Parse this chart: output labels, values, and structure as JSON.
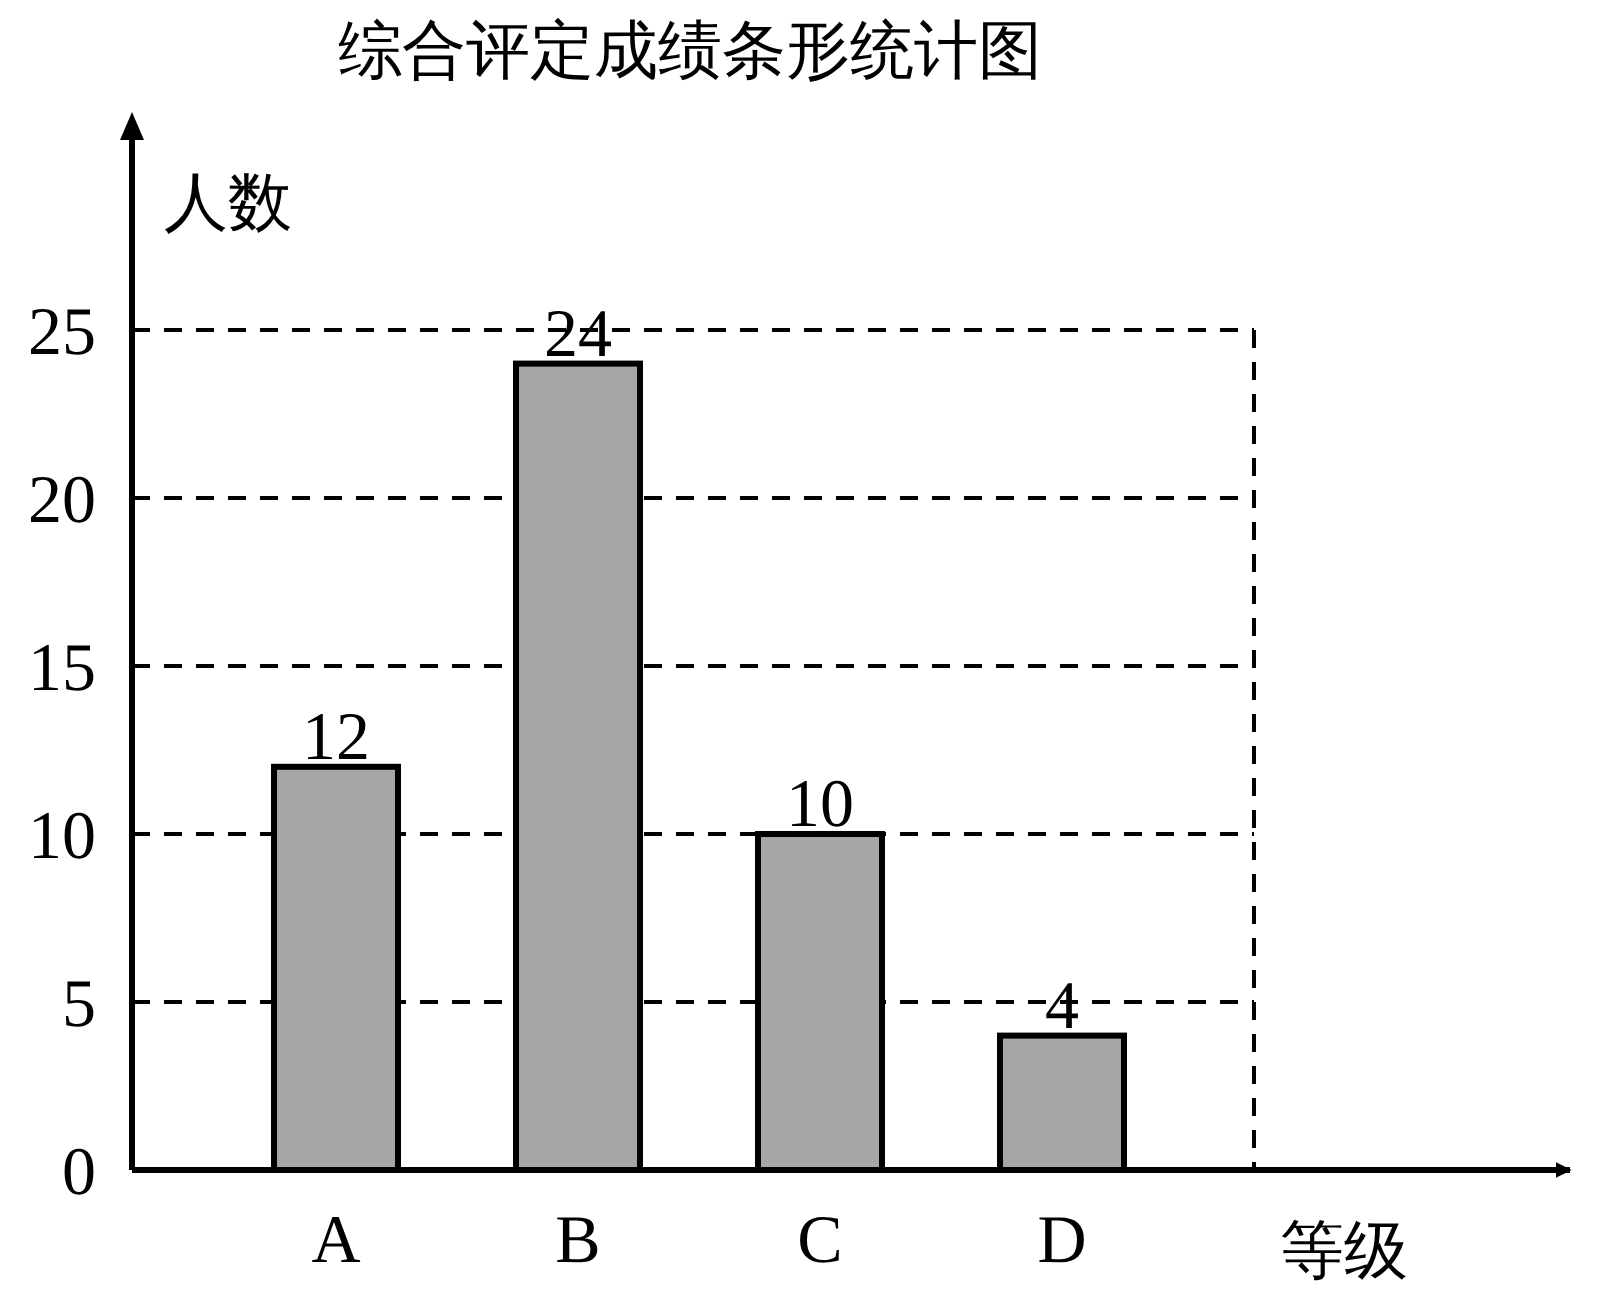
{
  "chart_data": {
    "type": "bar",
    "title": "综合评定成绩条形统计图",
    "xlabel": "等级",
    "ylabel": "人数",
    "categories": [
      "A",
      "B",
      "C",
      "D"
    ],
    "values": [
      12,
      24,
      10,
      4
    ],
    "color": "#a6a6a6",
    "ylim": [
      0,
      25
    ],
    "yticks": [
      0,
      5,
      10,
      15,
      20,
      25
    ],
    "grid": "y",
    "data_labels": true
  }
}
